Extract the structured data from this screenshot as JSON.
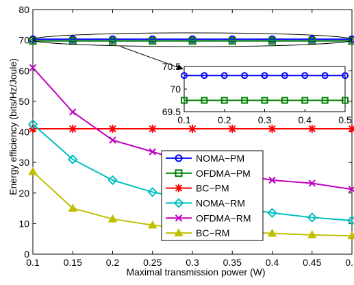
{
  "chart_data": {
    "type": "line",
    "title": "",
    "xlabel": "Maximal transmission power (W)",
    "ylabel": "Energy efficiency (bits/Hz/Joule)",
    "xlim": [
      0.1,
      0.5
    ],
    "ylim": [
      0,
      80
    ],
    "xticks": [
      "0.1",
      "0.15",
      "0.2",
      "0.25",
      "0.3",
      "0.35",
      "0.4",
      "0.45",
      "0.5"
    ],
    "yticks": [
      "0",
      "10",
      "20",
      "30",
      "40",
      "50",
      "60",
      "70",
      "80"
    ],
    "grid": false,
    "legend_position": "center",
    "x": [
      0.1,
      0.15,
      0.2,
      0.25,
      0.3,
      0.35,
      0.4,
      0.45,
      0.5
    ],
    "series": [
      {
        "name": "NOMA−PM",
        "color": "#0000ff",
        "marker": "circle",
        "values": [
          70.3,
          70.3,
          70.3,
          70.3,
          70.3,
          70.3,
          70.3,
          70.3,
          70.3
        ]
      },
      {
        "name": "OFDMA−PM",
        "color": "#008000",
        "marker": "square",
        "values": [
          69.75,
          69.75,
          69.75,
          69.75,
          69.75,
          69.75,
          69.75,
          69.75,
          69.75
        ]
      },
      {
        "name": "BC−PM",
        "color": "#ff0000",
        "marker": "asterisk",
        "values": [
          41,
          41,
          41,
          41,
          41,
          41,
          41,
          41,
          41
        ]
      },
      {
        "name": "NOMA−RM",
        "color": "#00bfbf",
        "marker": "diamond",
        "values": [
          42.5,
          31,
          24.2,
          20.3,
          17.8,
          15.5,
          13.5,
          12,
          11
        ]
      },
      {
        "name": "OFDMA−RM",
        "color": "#bf00bf",
        "marker": "x",
        "values": [
          61,
          46.5,
          37.3,
          33.5,
          29.5,
          26.5,
          24.2,
          23.2,
          21.2
        ]
      },
      {
        "name": "BC−RM",
        "color": "#bfbf00",
        "marker": "triangle",
        "values": [
          27,
          15,
          11.5,
          9.5,
          8.3,
          7.4,
          6.8,
          6.3,
          6
        ]
      }
    ],
    "inset": {
      "xlim": [
        0.1,
        0.5
      ],
      "ylim": [
        69.5,
        70.5
      ],
      "xticks": [
        "0.1",
        "0.2",
        "0.3",
        "0.4",
        "0.5"
      ],
      "yticks": [
        "69.5",
        "70",
        "70.5"
      ],
      "series_indices": [
        0,
        1
      ]
    }
  }
}
